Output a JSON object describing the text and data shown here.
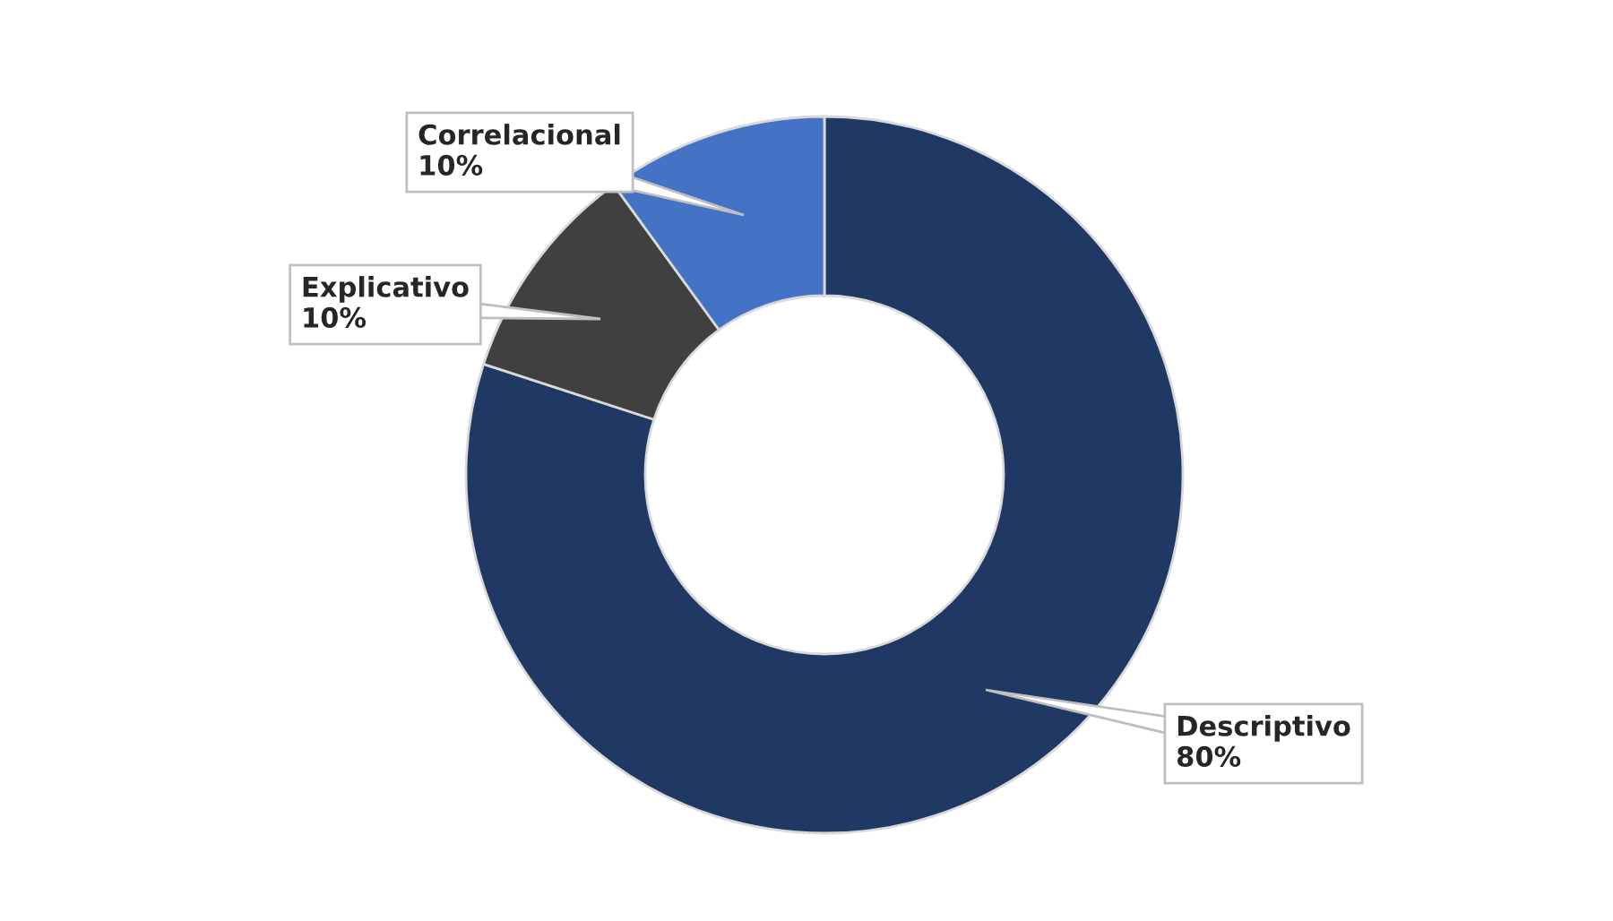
{
  "chart_data": {
    "type": "donut",
    "categories": [
      "Descriptivo",
      "Explicativo",
      "Correlacional"
    ],
    "values": [
      80,
      10,
      10
    ],
    "colors": [
      "#203864",
      "#404040",
      "#4472c4"
    ],
    "value_labels": [
      "80%",
      "10%",
      "10%"
    ],
    "legend": false
  }
}
